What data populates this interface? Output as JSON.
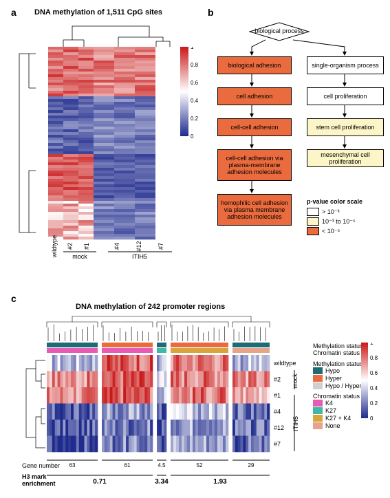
{
  "panel_a": {
    "label": "a",
    "title": "DNA methylation of 1,511 CpG sites",
    "x_labels": [
      "wildtype",
      "#2",
      "#1",
      "#4",
      "#12",
      "#7"
    ],
    "x_groups": [
      "mock",
      "ITIH5"
    ],
    "colorbar": {
      "ticks": [
        "1",
        "0.8",
        "0.6",
        "0.4",
        "0.2",
        "0"
      ],
      "colors_high": "#c91818",
      "color_mid": "#ffffff",
      "color_low": "#1e2a8c"
    },
    "heatmap_rows": 70
  },
  "panel_b": {
    "label": "b",
    "root": "biological process",
    "left_chain": [
      {
        "text": "biological adhesion",
        "cls": "go-orange"
      },
      {
        "text": "cell adhesion",
        "cls": "go-orange"
      },
      {
        "text": "cell-cell adhesion",
        "cls": "go-orange"
      },
      {
        "text": "cell-cell adhesion via plasma-membrane adhesion molecules",
        "cls": "go-orange"
      },
      {
        "text": "homophilic cell adhesion via plasma membrane adhesion molecules",
        "cls": "go-orange"
      }
    ],
    "right_chain": [
      {
        "text": "single-organism process",
        "cls": "go-white"
      },
      {
        "text": "cell proliferation",
        "cls": "go-white"
      },
      {
        "text": "stem cell proliferation",
        "cls": "go-yellow"
      },
      {
        "text": "mesenchymal cell proliferation",
        "cls": "go-yellow"
      }
    ],
    "legend": {
      "title": "p-value color scale",
      "items": [
        {
          "label": "> 10⁻³",
          "cls": "go-white"
        },
        {
          "label": "10⁻³ to 10⁻⁵",
          "cls": "go-yellow"
        },
        {
          "label": "< 10⁻⁵",
          "cls": "go-orange"
        }
      ]
    }
  },
  "panel_c": {
    "label": "c",
    "title": "DNA methylation of 242 promoter regions",
    "row_labels": [
      "wildtype",
      "#2",
      "#1",
      "#4",
      "#12",
      "#7"
    ],
    "row_groups": [
      "mock",
      "ITIH5"
    ],
    "annot_rows": [
      "Methylation status",
      "Chromatin status"
    ],
    "meth_colors": {
      "Hypo": "#1f6b73",
      "Hyper": "#ea6b3d",
      "Hypo / Hyper": "#cfcfcf"
    },
    "chrom_colors": {
      "K4": "#e85bb4",
      "K27": "#3fb8a6",
      "K27 + K4": "#d9a43b",
      "None": "#e8a488"
    },
    "colorbar": {
      "ticks": [
        "1",
        "0.8",
        "0.6",
        "0.4",
        "0.2",
        "0"
      ],
      "colors_high": "#c91818",
      "color_mid": "#ffffff",
      "color_low": "#1e2a8c"
    },
    "gene_numbers": [
      "63",
      "61",
      "4.5",
      "52",
      "29"
    ],
    "enrichment": [
      "0.71",
      "3.34",
      "1.93"
    ],
    "gene_number_label": "Gene number",
    "enrichment_label": "H3 mark enrichment"
  }
}
